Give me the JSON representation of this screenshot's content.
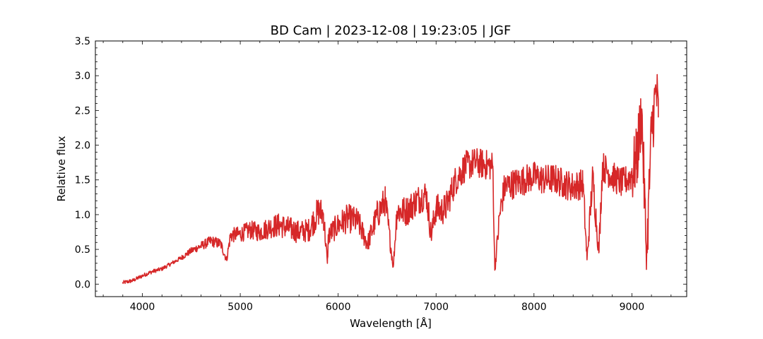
{
  "chart_data": {
    "type": "line",
    "title": "BD Cam | 2023-12-08 | 19:23:05 | JGF",
    "xlabel": "Wavelength [Å]",
    "ylabel": "Relative flux",
    "xlim": [
      3520,
      9560
    ],
    "ylim": [
      -0.18,
      3.5
    ],
    "xticks": [
      4000,
      5000,
      6000,
      7000,
      8000,
      9000
    ],
    "yticks": [
      "0.0",
      "0.5",
      "1.0",
      "1.5",
      "2.0",
      "2.5",
      "3.0",
      "3.5"
    ],
    "grid": false,
    "line_color": "#d62728",
    "series": [
      {
        "x": [
          3800,
          3900,
          4000,
          4100,
          4200,
          4300,
          4400,
          4500,
          4600,
          4700,
          4800,
          4860,
          4900,
          5000,
          5100,
          5200,
          5300,
          5400,
          5500,
          5600,
          5700,
          5800,
          5850,
          5890,
          5900,
          6000,
          6100,
          6200,
          6300,
          6400,
          6480,
          6563,
          6600,
          6700,
          6800,
          6900,
          6950,
          7000,
          7050,
          7100,
          7200,
          7300,
          7400,
          7500,
          7580,
          7600,
          7650,
          7700,
          7800,
          7900,
          8000,
          8100,
          8200,
          8300,
          8400,
          8500,
          8542,
          8600,
          8662,
          8700,
          8800,
          8900,
          8990,
          9050,
          9100,
          9150,
          9200,
          9250,
          9270
        ],
        "y": [
          0.02,
          0.05,
          0.12,
          0.18,
          0.22,
          0.3,
          0.38,
          0.48,
          0.55,
          0.62,
          0.58,
          0.35,
          0.7,
          0.72,
          0.78,
          0.75,
          0.82,
          0.85,
          0.8,
          0.75,
          0.78,
          1.05,
          1.0,
          0.3,
          0.7,
          0.85,
          0.95,
          0.9,
          0.58,
          1.0,
          1.2,
          0.25,
          1.05,
          1.05,
          1.2,
          1.3,
          0.7,
          1.1,
          1.05,
          1.1,
          1.5,
          1.7,
          1.75,
          1.72,
          1.7,
          0.2,
          1.0,
          1.4,
          1.45,
          1.5,
          1.55,
          1.5,
          1.52,
          1.45,
          1.4,
          1.45,
          0.35,
          1.55,
          0.45,
          1.7,
          1.55,
          1.45,
          1.55,
          1.8,
          2.5,
          0.35,
          2.2,
          2.8,
          2.4
        ]
      }
    ]
  }
}
